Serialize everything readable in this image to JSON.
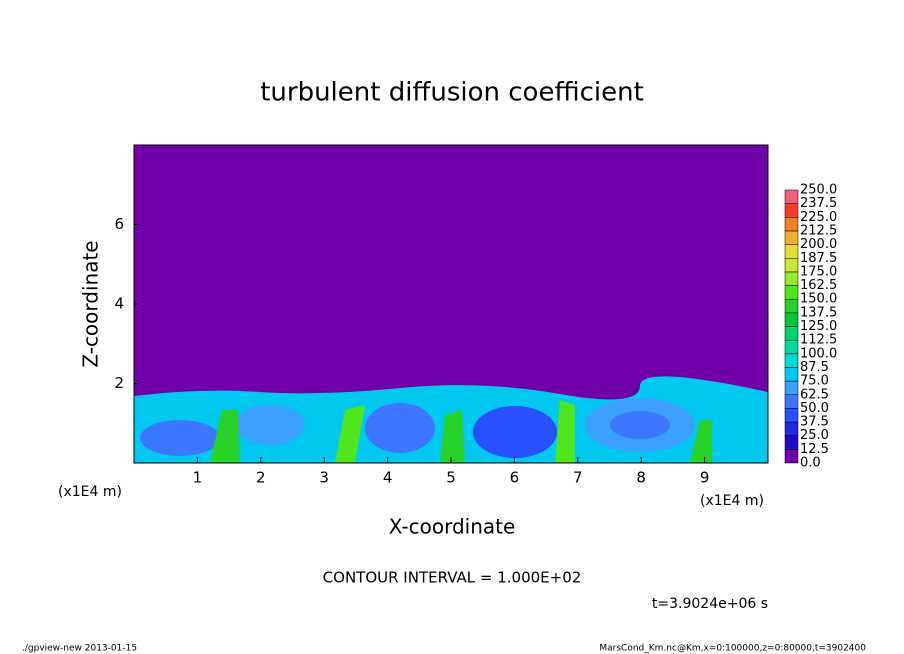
{
  "chart_data": {
    "type": "contour",
    "title": "turbulent diffusion coefficient",
    "x_label": "X-coordinate",
    "y_label": "Z-coordinate",
    "x_unit": "(x1E4 m)",
    "y_unit": "(x1E4 m)",
    "xlim": [
      0,
      10
    ],
    "ylim": [
      0,
      8
    ],
    "xticks": [
      1,
      2,
      3,
      4,
      5,
      6,
      7,
      8,
      9
    ],
    "yticks": [
      2,
      4,
      6
    ],
    "contour_interval": "CONTOUR INTERVAL = 1.000E+02",
    "time": "t=3.9024e+06 s",
    "footer_left": "./gpview-new  2013-01-15",
    "footer_right": "MarsCond_Km.nc@Km,x=0:100000,z=0:80000,t=3902400",
    "levels": [
      {
        "value": 0,
        "label": "0.0"
      },
      {
        "value": 12.5,
        "label": "12.5"
      },
      {
        "value": 25,
        "label": "25.0"
      },
      {
        "value": 37.5,
        "label": "37.5"
      },
      {
        "value": 50,
        "label": "50.0"
      },
      {
        "value": 62.5,
        "label": "62.5"
      },
      {
        "value": 75,
        "label": "75.0"
      },
      {
        "value": 87.5,
        "label": "87.5"
      },
      {
        "value": 100,
        "label": "100.0"
      },
      {
        "value": 112.5,
        "label": "112.5"
      },
      {
        "value": 125,
        "label": "125.0"
      },
      {
        "value": 137.5,
        "label": "137.5"
      },
      {
        "value": 150,
        "label": "150.0"
      },
      {
        "value": 162.5,
        "label": "162.5"
      },
      {
        "value": 175,
        "label": "175.0"
      },
      {
        "value": 187.5,
        "label": "187.5"
      },
      {
        "value": 200,
        "label": "200.0"
      },
      {
        "value": 212.5,
        "label": "212.5"
      },
      {
        "value": 225,
        "label": "225.0"
      },
      {
        "value": 237.5,
        "label": "237.5"
      },
      {
        "value": 250,
        "label": "250.0"
      }
    ],
    "colors": [
      "#7000a8",
      "#1e0ac8",
      "#1e28e6",
      "#2850ff",
      "#3c78ff",
      "#3ca0ff",
      "#00c8f0",
      "#00dcd2",
      "#00dca0",
      "#00d26e",
      "#00c83c",
      "#28d228",
      "#50e61e",
      "#96e632",
      "#c8e632",
      "#e6dc32",
      "#f0af2d",
      "#f08228",
      "#fa3c28",
      "#f0607a"
    ]
  }
}
